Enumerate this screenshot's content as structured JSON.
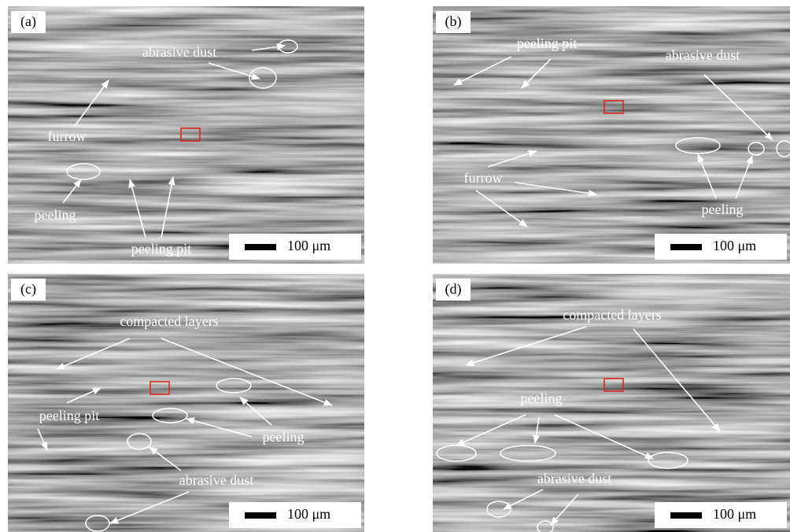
{
  "panels": [
    {
      "label": "(a)",
      "scale_bar": "100 μm",
      "annotations": [
        "abrasive dust",
        "furrow",
        "peeling",
        "peeling pit"
      ]
    },
    {
      "label": "(b)",
      "scale_bar": "100 μm",
      "annotations": [
        "peeling pit",
        "abrasive dust",
        "furrow",
        "peeling"
      ]
    },
    {
      "label": "(c)",
      "scale_bar": "100 μm",
      "annotations": [
        "compacted layers",
        "peeling pit",
        "peeling",
        "abrasive dust"
      ]
    },
    {
      "label": "(d)",
      "scale_bar": "100 μm",
      "annotations": [
        "compacted layers",
        "peeling",
        "abrasive dust"
      ]
    }
  ]
}
